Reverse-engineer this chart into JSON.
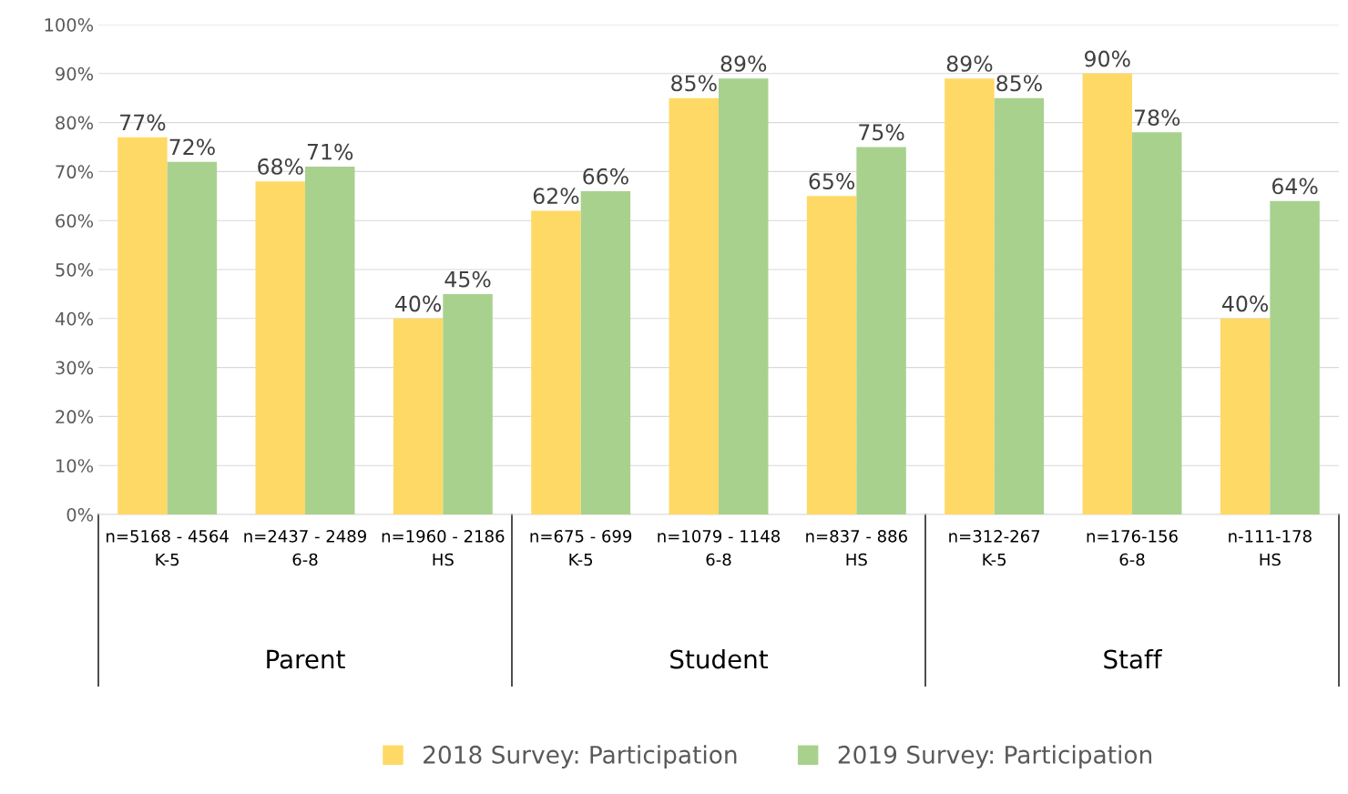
{
  "chart_data": {
    "type": "bar",
    "categories": [
      "n=5168 - 4564\nK-5",
      "n=2437 - 2489\n6-8",
      "n=1960 - 2186\nHS",
      "n=675 - 699\nK-5",
      "n=1079 - 1148\n6-8",
      "n=837 - 886\nHS",
      "n=312-267\nK-5",
      "n=176-156\n6-8",
      "n-111-178\nHS"
    ],
    "series": [
      {
        "name": "2018 Survey: Participation",
        "color": "#ffd966",
        "values": [
          77,
          68,
          40,
          62,
          85,
          65,
          89,
          90,
          40
        ],
        "value_labels": [
          "77%",
          "68%",
          "40%",
          "62%",
          "85%",
          "65%",
          "89%",
          "90%",
          "40%"
        ]
      },
      {
        "name": "2019 Survey: Participation",
        "color": "#a9d18e",
        "values": [
          72,
          71,
          45,
          66,
          89,
          75,
          85,
          78,
          64
        ],
        "value_labels": [
          "72%",
          "71%",
          "45%",
          "66%",
          "89%",
          "75%",
          "85%",
          "78%",
          "64%"
        ]
      }
    ],
    "annotations": [
      "Parent",
      "Student",
      "Staff"
    ],
    "ylim": [
      0,
      100
    ],
    "yticks": [
      {
        "value": 0,
        "label": "0%"
      },
      {
        "value": 10,
        "label": "10%"
      },
      {
        "value": 20,
        "label": "20%"
      },
      {
        "value": 30,
        "label": "30%"
      },
      {
        "value": 40,
        "label": "40%"
      },
      {
        "value": 50,
        "label": "50%"
      },
      {
        "value": 60,
        "label": "60%"
      },
      {
        "value": 70,
        "label": "70%"
      },
      {
        "value": 80,
        "label": "80%"
      },
      {
        "value": 90,
        "label": "90%"
      },
      {
        "value": 100,
        "label": "100%"
      }
    ],
    "grid": "y",
    "legend": "bottom"
  }
}
